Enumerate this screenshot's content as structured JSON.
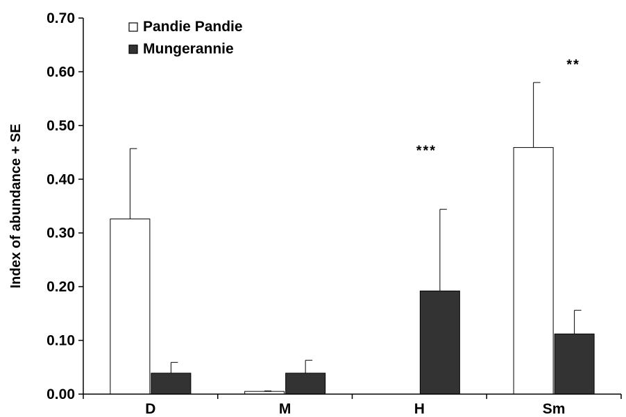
{
  "chart_data": {
    "type": "bar",
    "title": "",
    "xlabel": "",
    "ylabel": "Index of abundance + SE",
    "ylim": [
      0,
      0.7
    ],
    "yticks": [
      "0.00",
      "0.10",
      "0.20",
      "0.30",
      "0.40",
      "0.50",
      "0.60",
      "0.70"
    ],
    "categories": [
      "D",
      "M",
      "H",
      "Sm"
    ],
    "legend_position": "top-left",
    "grid": false,
    "series": [
      {
        "name": "Pandie Pandie",
        "color": "#ffffff",
        "values": [
          0.326,
          0.005,
          0.0,
          0.459
        ],
        "errors": [
          0.131,
          0.001,
          0.0,
          0.121
        ]
      },
      {
        "name": "Mungerannie",
        "color": "#333333",
        "values": [
          0.039,
          0.039,
          0.192,
          0.112
        ],
        "errors": [
          0.02,
          0.024,
          0.152,
          0.044
        ]
      }
    ],
    "annotations": [
      {
        "category": "H",
        "text": "***"
      },
      {
        "category": "Sm",
        "text": "**"
      }
    ]
  }
}
